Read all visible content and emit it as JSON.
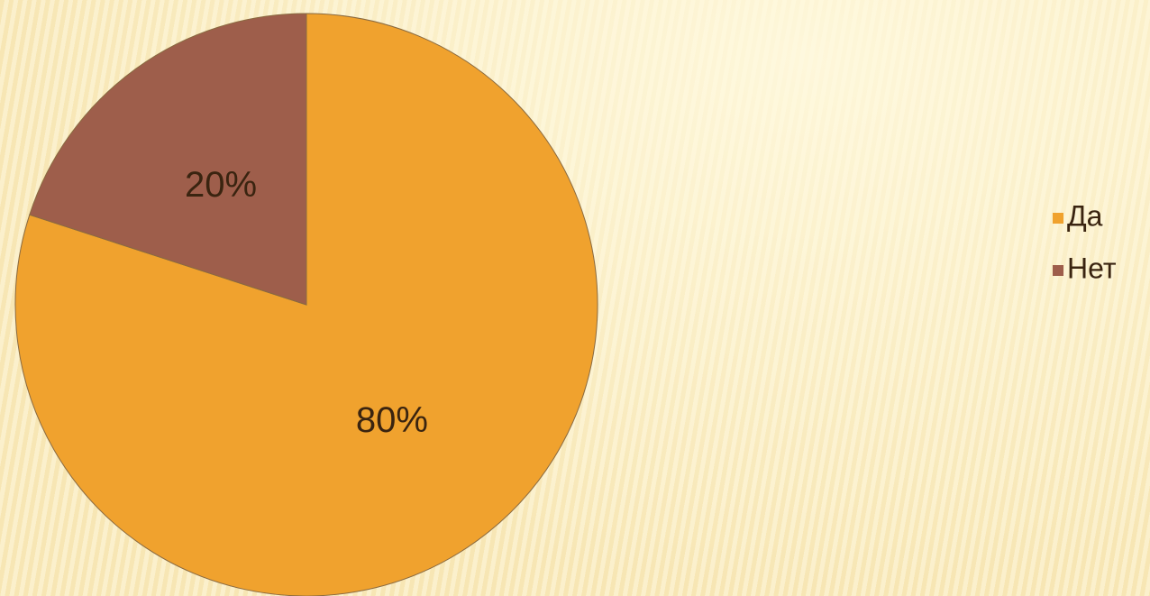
{
  "chart_data": {
    "type": "pie",
    "categories": [
      "Да",
      "Нет"
    ],
    "values": [
      80,
      20
    ],
    "value_labels": [
      "80%",
      "20%"
    ],
    "colors": [
      "#f0a22e",
      "#9e5e4b"
    ],
    "legend": "right"
  }
}
